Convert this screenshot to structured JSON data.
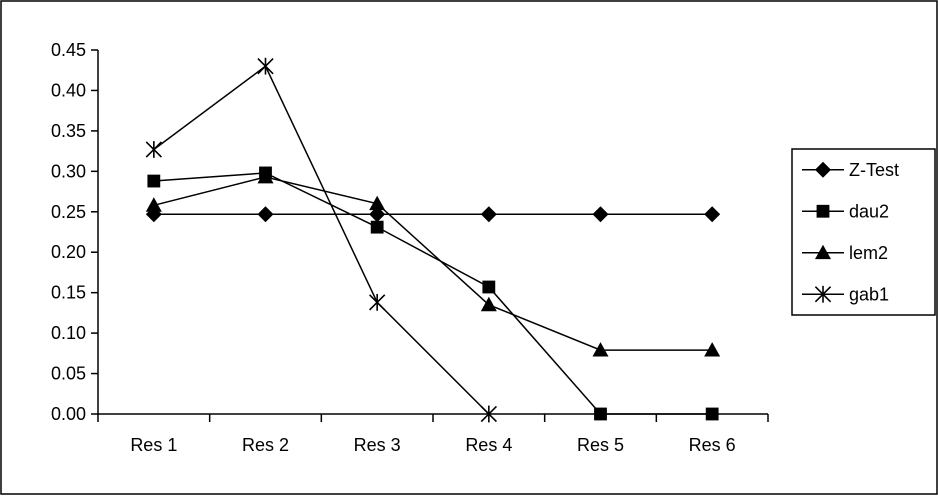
{
  "chart_data": {
    "type": "line",
    "title": "",
    "xlabel": "",
    "ylabel": "",
    "categories": [
      "Res 1",
      "Res 2",
      "Res 3",
      "Res 4",
      "Res 5",
      "Res 6"
    ],
    "ylim": [
      0,
      0.45
    ],
    "yticks": [
      "0.00",
      "0.05",
      "0.10",
      "0.15",
      "0.20",
      "0.25",
      "0.30",
      "0.35",
      "0.40",
      "0.45"
    ],
    "grid": false,
    "legend": "right",
    "series": [
      {
        "name": "Z-Test",
        "marker": "diamond",
        "color": "#000000",
        "values": [
          0.247,
          0.247,
          0.247,
          0.247,
          0.247,
          0.247
        ]
      },
      {
        "name": "dau2",
        "marker": "square",
        "color": "#000000",
        "values": [
          0.288,
          0.298,
          0.231,
          0.157,
          0.0,
          0.0
        ]
      },
      {
        "name": "lem2",
        "marker": "triangle",
        "color": "#000000",
        "values": [
          0.258,
          0.293,
          0.26,
          0.135,
          0.079,
          0.079
        ]
      },
      {
        "name": "gab1",
        "marker": "asterisk",
        "color": "#000000",
        "values": [
          0.327,
          0.43,
          0.138,
          0.0,
          null,
          null
        ]
      }
    ]
  }
}
